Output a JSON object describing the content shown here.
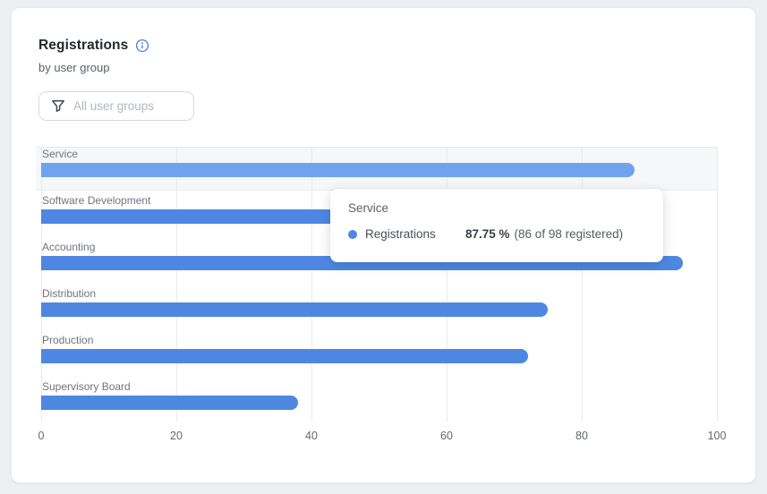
{
  "header": {
    "title": "Registrations",
    "subtitle": "by user group"
  },
  "filter": {
    "placeholder": "All user groups"
  },
  "chart_data": {
    "type": "bar",
    "orientation": "horizontal",
    "title": "Registrations",
    "subtitle": "by user group",
    "series_name": "Registrations",
    "categories": [
      "Service",
      "Software Development",
      "Accounting",
      "Distribution",
      "Production",
      "Supervisory Board"
    ],
    "values": [
      87.75,
      70,
      95,
      75,
      72,
      38
    ],
    "unit": "%",
    "xlim": [
      0,
      100
    ],
    "x_ticks": [
      "0",
      "20",
      "40",
      "60",
      "80",
      "100"
    ],
    "grid": "vertical",
    "highlighted_category": "Service",
    "colors": {
      "bar": "#4e87e2",
      "bar_hovered": "#70a3ee",
      "row_highlight": "#f5f7f9",
      "gridline": "#e9eaec"
    }
  },
  "tooltip": {
    "title": "Service",
    "series": "Registrations",
    "value": "87.75 %",
    "detail": "(86 of 98 registered)"
  },
  "icons": {
    "info": "info-icon",
    "filter": "funnel-icon"
  }
}
